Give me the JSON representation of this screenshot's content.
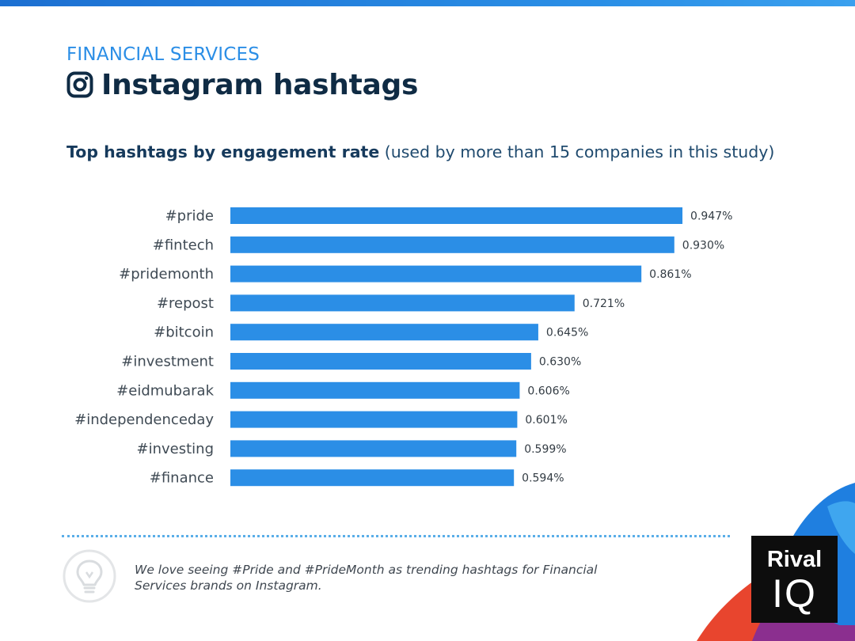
{
  "header": {
    "category": "FINANCIAL SERVICES",
    "title": "Instagram hashtags",
    "subtitle_bold": "Top hashtags by engagement rate",
    "subtitle_rest": " (used by more than 15 companies in this study)"
  },
  "chart_data": {
    "type": "bar",
    "orientation": "horizontal",
    "categories": [
      "#pride",
      "#fintech",
      "#pridemonth",
      "#repost",
      "#bitcoin",
      "#investment",
      "#eidmubarak",
      "#independenceday",
      "#investing",
      "#finance"
    ],
    "values": [
      0.947,
      0.93,
      0.861,
      0.721,
      0.645,
      0.63,
      0.606,
      0.601,
      0.599,
      0.594
    ],
    "value_labels": [
      "0.947%",
      "0.930%",
      "0.861%",
      "0.721%",
      "0.645%",
      "0.630%",
      "0.606%",
      "0.601%",
      "0.599%",
      "0.594%"
    ],
    "bar_color": "#2b8ee6",
    "grid": false,
    "legend": "none"
  },
  "footer": {
    "note": "We love seeing #Pride and #PrideMonth as trending hashtags for Financial Services brands on Instagram.",
    "logo_line1": "Rival",
    "logo_line2": "IQ"
  },
  "icons": {
    "title_icon": "instagram-icon",
    "note_icon": "lightbulb-icon"
  },
  "colors": {
    "accent": "#2b8ee6",
    "title": "#0f2b44",
    "logo_bg": "#0d0d0d"
  }
}
